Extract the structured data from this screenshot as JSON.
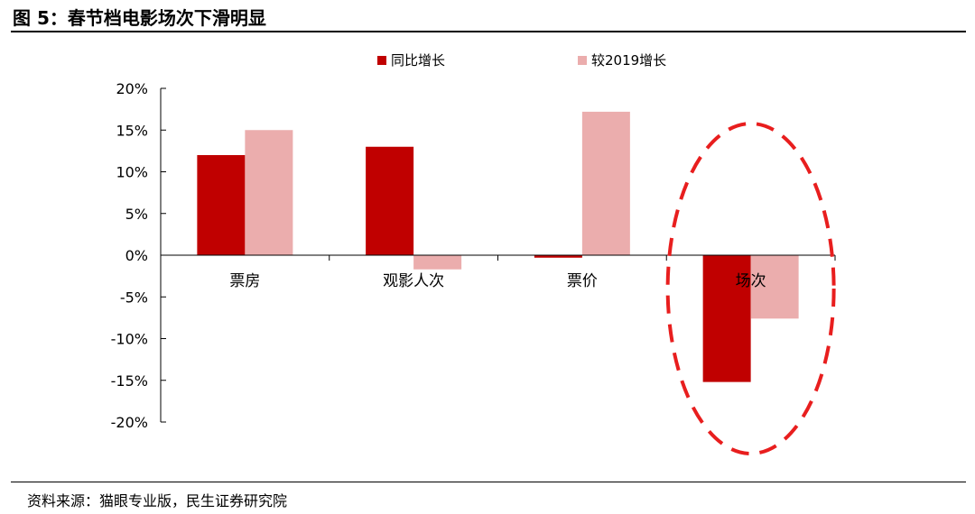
{
  "figure": {
    "title": "图 5：春节档电影场次下滑明显",
    "source": "资料来源：猫眼专业版，民生证券研究院"
  },
  "colors": {
    "series_yoy": "#c00000",
    "series_vs2019": "#ebadad",
    "highlight": "#e81e1e"
  },
  "chart_data": {
    "type": "bar",
    "categories": [
      "票房",
      "观影人次",
      "票价",
      "场次"
    ],
    "series": [
      {
        "name": "同比增长",
        "values": [
          12,
          13,
          -0.3,
          -15.2
        ]
      },
      {
        "name": "较2019增长",
        "values": [
          15,
          -1.7,
          17.2,
          -7.6
        ]
      }
    ],
    "ylim": [
      -20,
      20
    ],
    "yticks": [
      "-20%",
      "-15%",
      "-10%",
      "-5%",
      "0%",
      "5%",
      "10%",
      "15%",
      "20%"
    ],
    "y_unit": "%",
    "legend_position": "top",
    "grid": false,
    "highlighted_category": "场次"
  }
}
